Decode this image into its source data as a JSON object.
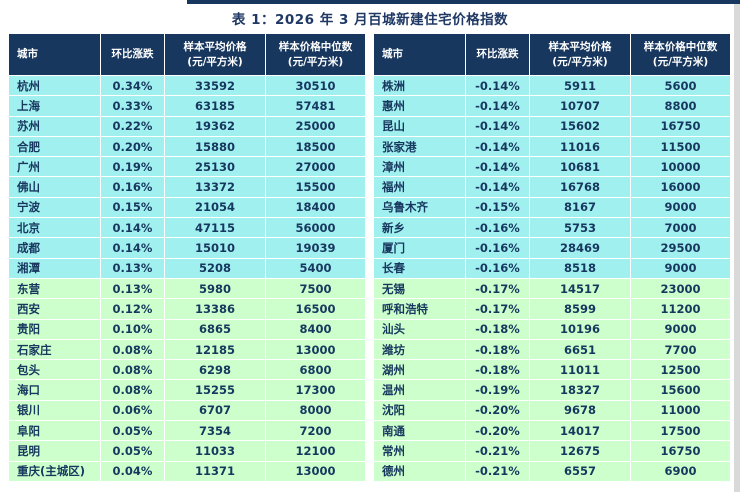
{
  "page": {
    "title": "表 1：2026 年 3 月百城新建住宅价格指数"
  },
  "colors": {
    "header_bg": "#17375E",
    "title_color": "#1F3864",
    "cyan_row": "#A0F0F0",
    "green_row": "#CCFFCC",
    "cell_text": "#17375E"
  },
  "columns": [
    {
      "line1": "城市",
      "line2": ""
    },
    {
      "line1": "环比涨跌",
      "line2": ""
    },
    {
      "line1": "样本平均价格",
      "line2": "(元/平方米)"
    },
    {
      "line1": "样本价格中位数",
      "line2": "(元/平方米)"
    }
  ],
  "left_rows": [
    {
      "city": "杭州",
      "change": "0.34%",
      "avg": "33592",
      "median": "30510",
      "tone": "cyan"
    },
    {
      "city": "上海",
      "change": "0.33%",
      "avg": "63185",
      "median": "57481",
      "tone": "cyan"
    },
    {
      "city": "苏州",
      "change": "0.22%",
      "avg": "19362",
      "median": "25000",
      "tone": "cyan"
    },
    {
      "city": "合肥",
      "change": "0.20%",
      "avg": "15880",
      "median": "18500",
      "tone": "cyan"
    },
    {
      "city": "广州",
      "change": "0.19%",
      "avg": "25130",
      "median": "27000",
      "tone": "cyan"
    },
    {
      "city": "佛山",
      "change": "0.16%",
      "avg": "13372",
      "median": "15500",
      "tone": "cyan"
    },
    {
      "city": "宁波",
      "change": "0.15%",
      "avg": "21054",
      "median": "18400",
      "tone": "cyan"
    },
    {
      "city": "北京",
      "change": "0.14%",
      "avg": "47115",
      "median": "56000",
      "tone": "cyan"
    },
    {
      "city": "成都",
      "change": "0.14%",
      "avg": "15010",
      "median": "19039",
      "tone": "cyan"
    },
    {
      "city": "湘潭",
      "change": "0.13%",
      "avg": "5208",
      "median": "5400",
      "tone": "cyan"
    },
    {
      "city": "东营",
      "change": "0.13%",
      "avg": "5980",
      "median": "7500",
      "tone": "green"
    },
    {
      "city": "西安",
      "change": "0.12%",
      "avg": "13386",
      "median": "16500",
      "tone": "green"
    },
    {
      "city": "贵阳",
      "change": "0.10%",
      "avg": "6865",
      "median": "8400",
      "tone": "green"
    },
    {
      "city": "石家庄",
      "change": "0.08%",
      "avg": "12185",
      "median": "13000",
      "tone": "green"
    },
    {
      "city": "包头",
      "change": "0.08%",
      "avg": "6298",
      "median": "6800",
      "tone": "green"
    },
    {
      "city": "海口",
      "change": "0.08%",
      "avg": "15255",
      "median": "17300",
      "tone": "green"
    },
    {
      "city": "银川",
      "change": "0.06%",
      "avg": "6707",
      "median": "8000",
      "tone": "green"
    },
    {
      "city": "阜阳",
      "change": "0.05%",
      "avg": "7354",
      "median": "7200",
      "tone": "green"
    },
    {
      "city": "昆明",
      "change": "0.05%",
      "avg": "11033",
      "median": "12100",
      "tone": "green"
    },
    {
      "city": "重庆(主城区)",
      "change": "0.04%",
      "avg": "11371",
      "median": "13000",
      "tone": "green"
    }
  ],
  "right_rows": [
    {
      "city": "株洲",
      "change": "-0.14%",
      "avg": "5911",
      "median": "5600",
      "tone": "cyan"
    },
    {
      "city": "惠州",
      "change": "-0.14%",
      "avg": "10707",
      "median": "8800",
      "tone": "cyan"
    },
    {
      "city": "昆山",
      "change": "-0.14%",
      "avg": "15602",
      "median": "16750",
      "tone": "cyan"
    },
    {
      "city": "张家港",
      "change": "-0.14%",
      "avg": "11016",
      "median": "11500",
      "tone": "cyan"
    },
    {
      "city": "漳州",
      "change": "-0.14%",
      "avg": "10681",
      "median": "10000",
      "tone": "cyan"
    },
    {
      "city": "福州",
      "change": "-0.14%",
      "avg": "16768",
      "median": "16000",
      "tone": "cyan"
    },
    {
      "city": "乌鲁木齐",
      "change": "-0.15%",
      "avg": "8167",
      "median": "9000",
      "tone": "cyan"
    },
    {
      "city": "新乡",
      "change": "-0.16%",
      "avg": "5753",
      "median": "7000",
      "tone": "cyan"
    },
    {
      "city": "厦门",
      "change": "-0.16%",
      "avg": "28469",
      "median": "29500",
      "tone": "cyan"
    },
    {
      "city": "长春",
      "change": "-0.16%",
      "avg": "8518",
      "median": "9000",
      "tone": "cyan"
    },
    {
      "city": "无锡",
      "change": "-0.17%",
      "avg": "14517",
      "median": "23000",
      "tone": "green"
    },
    {
      "city": "呼和浩特",
      "change": "-0.17%",
      "avg": "8599",
      "median": "11200",
      "tone": "green"
    },
    {
      "city": "汕头",
      "change": "-0.18%",
      "avg": "10196",
      "median": "9000",
      "tone": "green"
    },
    {
      "city": "潍坊",
      "change": "-0.18%",
      "avg": "6651",
      "median": "7700",
      "tone": "green"
    },
    {
      "city": "湖州",
      "change": "-0.18%",
      "avg": "11011",
      "median": "12500",
      "tone": "green"
    },
    {
      "city": "温州",
      "change": "-0.19%",
      "avg": "18327",
      "median": "15600",
      "tone": "green"
    },
    {
      "city": "沈阳",
      "change": "-0.20%",
      "avg": "9678",
      "median": "11000",
      "tone": "green"
    },
    {
      "city": "南通",
      "change": "-0.20%",
      "avg": "14017",
      "median": "17500",
      "tone": "green"
    },
    {
      "city": "常州",
      "change": "-0.21%",
      "avg": "12675",
      "median": "16750",
      "tone": "green"
    },
    {
      "city": "德州",
      "change": "-0.21%",
      "avg": "6557",
      "median": "6900",
      "tone": "green"
    }
  ]
}
